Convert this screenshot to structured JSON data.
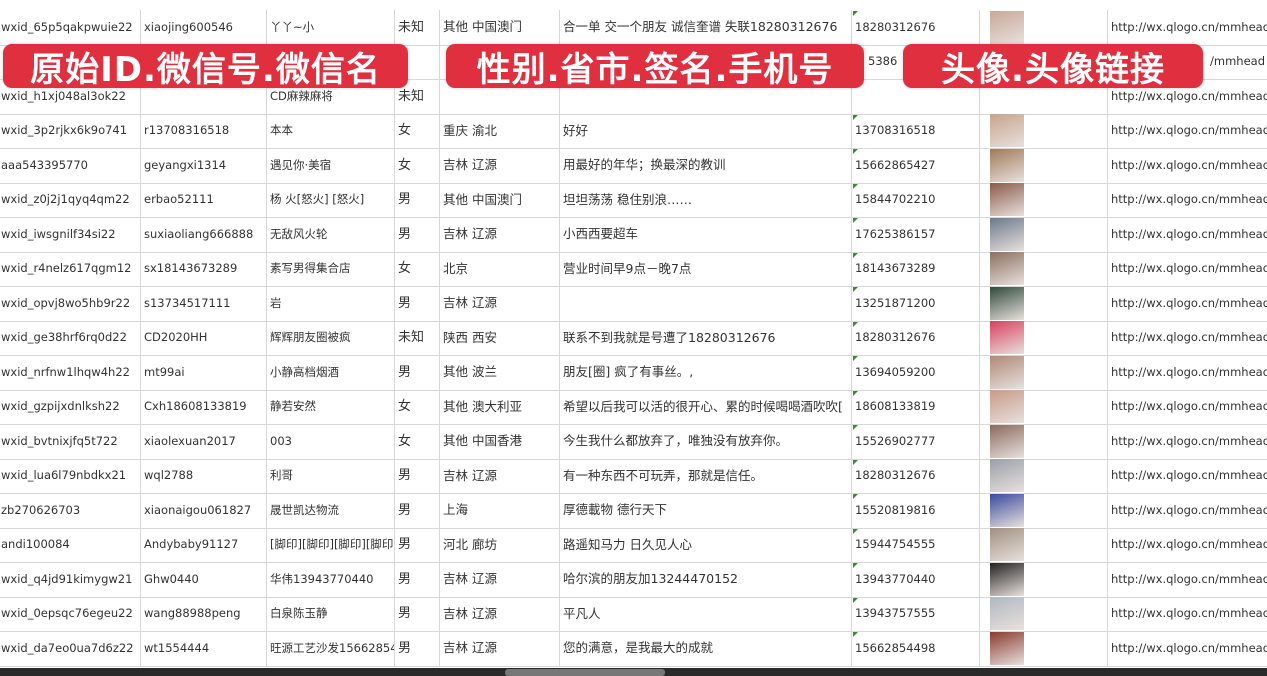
{
  "overlays": [
    "原始ID.微信号.微信名",
    "性别.省市.签名.手机号",
    "头像.头像链接"
  ],
  "avatar_colors": [
    "#c9a89a",
    "#7a86b0",
    "#b89486",
    "#c7a48c",
    "#a07a5a",
    "#8b5a4a",
    "#6b7a8c",
    "#8a7060",
    "#2f4a3a",
    "#d94060",
    "#b08878",
    "#c89a88",
    "#8a6a5e",
    "#9aa0a8",
    "#3a4aa0",
    "#a09080",
    "#222222",
    "#b0b8c0",
    "#8a3a30"
  ],
  "rows": [
    {
      "id": "wxid_65p5qakpwuie22",
      "wechat": "xiaojing600546",
      "name": "丫丫~小",
      "gender": "未知",
      "region": "其他 中国澳门",
      "signature": "合一单 交一个朋友 诚信奎谱 失联18280312676",
      "phone": "18280312676",
      "url": "http://wx.qlogo.cn/mmhead"
    },
    {
      "id": "",
      "wechat": "",
      "name": "",
      "gender": "",
      "region": "",
      "signature": "",
      "phone": "5386",
      "url": "/mmhead"
    },
    {
      "id": "wxid_h1xj048al3ok22",
      "wechat": "",
      "name": "CD麻辣麻将",
      "gender": "未知",
      "region": "",
      "signature": "",
      "phone": "",
      "url": "http://wx.qlogo.cn/mmhead"
    },
    {
      "id": "wxid_3p2rjkx6k9o741",
      "wechat": "r13708316518",
      "name": "本本",
      "gender": "女",
      "region": "重庆 渝北",
      "signature": "好好",
      "phone": "13708316518",
      "url": "http://wx.qlogo.cn/mmhead"
    },
    {
      "id": "aaa543395770",
      "wechat": "geyangxi1314",
      "name": "遇见你·美宿",
      "gender": "女",
      "region": "吉林 辽源",
      "signature": "用最好的年华；换最深的教训",
      "phone": "15662865427",
      "url": "http://wx.qlogo.cn/mmhead"
    },
    {
      "id": "wxid_z0j2j1qyq4qm22",
      "wechat": "erbao52111",
      "name": "杨 火[怒火] [怒火]",
      "gender": "男",
      "region": "其他 中国澳门",
      "signature": "坦坦荡荡 稳住别浪……",
      "phone": "15844702210",
      "url": "http://wx.qlogo.cn/mmhead"
    },
    {
      "id": "wxid_iwsgnilf34si22",
      "wechat": "suxiaoliang666888",
      "name": "无敌风火轮",
      "gender": "男",
      "region": "吉林 辽源",
      "signature": "小西西要超车",
      "phone": "17625386157",
      "url": "http://wx.qlogo.cn/mmhead"
    },
    {
      "id": "wxid_r4nelz617qgm12",
      "wechat": "sx18143673289",
      "name": "素写男得集合店",
      "gender": "女",
      "region": "北京",
      "signature": "营业时间早9点－晚7点",
      "phone": "18143673289",
      "url": "http://wx.qlogo.cn/mmhead"
    },
    {
      "id": "wxid_opvj8wo5hb9r22",
      "wechat": "s13734517111",
      "name": "岩",
      "gender": "男",
      "region": "吉林 辽源",
      "signature": "",
      "phone": "13251871200",
      "url": "http://wx.qlogo.cn/mmhead"
    },
    {
      "id": "wxid_ge38hrf6rq0d22",
      "wechat": "CD2020HH",
      "name": "辉辉朋友圈被疯",
      "gender": "未知",
      "region": "陕西 西安",
      "signature": "联系不到我就是号遭了18280312676",
      "phone": "18280312676",
      "url": "http://wx.qlogo.cn/mmhead"
    },
    {
      "id": "wxid_nrfnw1lhqw4h22",
      "wechat": "mt99ai",
      "name": "小静高档烟酒",
      "gender": "男",
      "region": "其他 波兰",
      "signature": "朋友[圈] 疯了有事丝。,",
      "phone": "13694059200",
      "url": "http://wx.qlogo.cn/mmhead"
    },
    {
      "id": "wxid_gzpijxdnlksh22",
      "wechat": "Cxh18608133819",
      "name": "静若安然",
      "gender": "女",
      "region": "其他 澳大利亚",
      "signature": "希望以后我可以活的很开心、累的时候喝喝酒吹吹[",
      "phone": "18608133819",
      "url": "http://wx.qlogo.cn/mmhead"
    },
    {
      "id": "wxid_bvtnixjfq5t722",
      "wechat": "xiaolexuan2017",
      "name": "003",
      "gender": "女",
      "region": "其他 中国香港",
      "signature": "今生我什么都放弃了，唯独没有放弃你。",
      "phone": "15526902777",
      "url": "http://wx.qlogo.cn/mmhead"
    },
    {
      "id": "wxid_lua6l79nbdkx21",
      "wechat": "wql2788",
      "name": "利哥",
      "gender": "男",
      "region": "吉林 辽源",
      "signature": "有一种东西不可玩弄，那就是信任。",
      "phone": "18280312676",
      "url": "http://wx.qlogo.cn/mmhead"
    },
    {
      "id": "zb270626703",
      "wechat": "xiaonaigou061827",
      "name": "晟世凯达物流",
      "gender": "男",
      "region": "上海",
      "signature": "厚德載物 德行天下",
      "phone": "15520819816",
      "url": "http://wx.qlogo.cn/mmhead"
    },
    {
      "id": "andi100084",
      "wechat": "Andybaby91127",
      "name": "[脚印][脚印][脚印][脚印]",
      "gender": "男",
      "region": "河北 廊坊",
      "signature": "路遥知马力 日久见人心",
      "phone": "15944754555",
      "url": "http://wx.qlogo.cn/mmhead"
    },
    {
      "id": "wxid_q4jd91kimygw21",
      "wechat": "Ghw0440",
      "name": "华伟13943770440",
      "gender": "男",
      "region": "吉林 辽源",
      "signature": "哈尔滨的朋友加13244470152",
      "phone": "13943770440",
      "url": "http://wx.qlogo.cn/mmhead"
    },
    {
      "id": "wxid_0epsqc76egeu22",
      "wechat": "wang88988peng",
      "name": "白泉陈玉静",
      "gender": "男",
      "region": "吉林 辽源",
      "signature": "平凡人",
      "phone": "13943757555",
      "url": "http://wx.qlogo.cn/mmhead"
    },
    {
      "id": "wxid_da7eo0ua7d6z22",
      "wechat": "wt1554444",
      "name": "旺源工艺沙发15662854",
      "gender": "男",
      "region": "吉林 辽源",
      "signature": "您的满意，是我最大的成就",
      "phone": "15662854498",
      "url": "http://wx.qlogo.cn/mmhead"
    }
  ]
}
